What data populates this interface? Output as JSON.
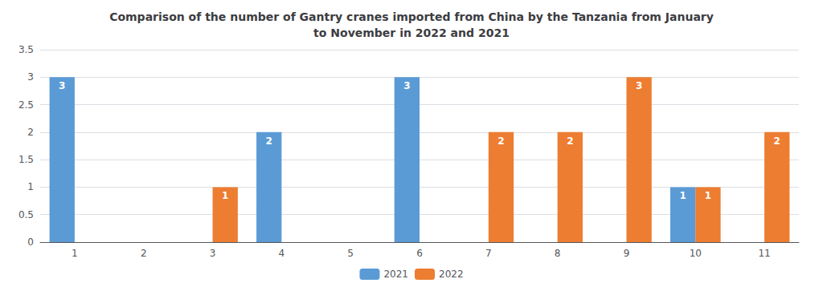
{
  "chart_data": {
    "type": "bar",
    "title": "Comparison of the number of Gantry cranes imported from China by the Tanzania from January\nto November in 2022 and 2021",
    "categories": [
      "1",
      "2",
      "3",
      "4",
      "5",
      "6",
      "7",
      "8",
      "9",
      "10",
      "11"
    ],
    "series": [
      {
        "name": "2021",
        "color": "#5B9BD5",
        "values": [
          3,
          0,
          0,
          2,
          0,
          3,
          0,
          0,
          0,
          1,
          0
        ]
      },
      {
        "name": "2022",
        "color": "#ED7D31",
        "values": [
          0,
          0,
          1,
          0,
          0,
          0,
          2,
          2,
          3,
          1,
          2
        ]
      }
    ],
    "ylim": [
      0,
      3.5
    ],
    "yticks": [
      0,
      0.5,
      1,
      1.5,
      2,
      2.5,
      3,
      3.5
    ],
    "grid": true,
    "legend": "bottom",
    "data_labels": true
  }
}
